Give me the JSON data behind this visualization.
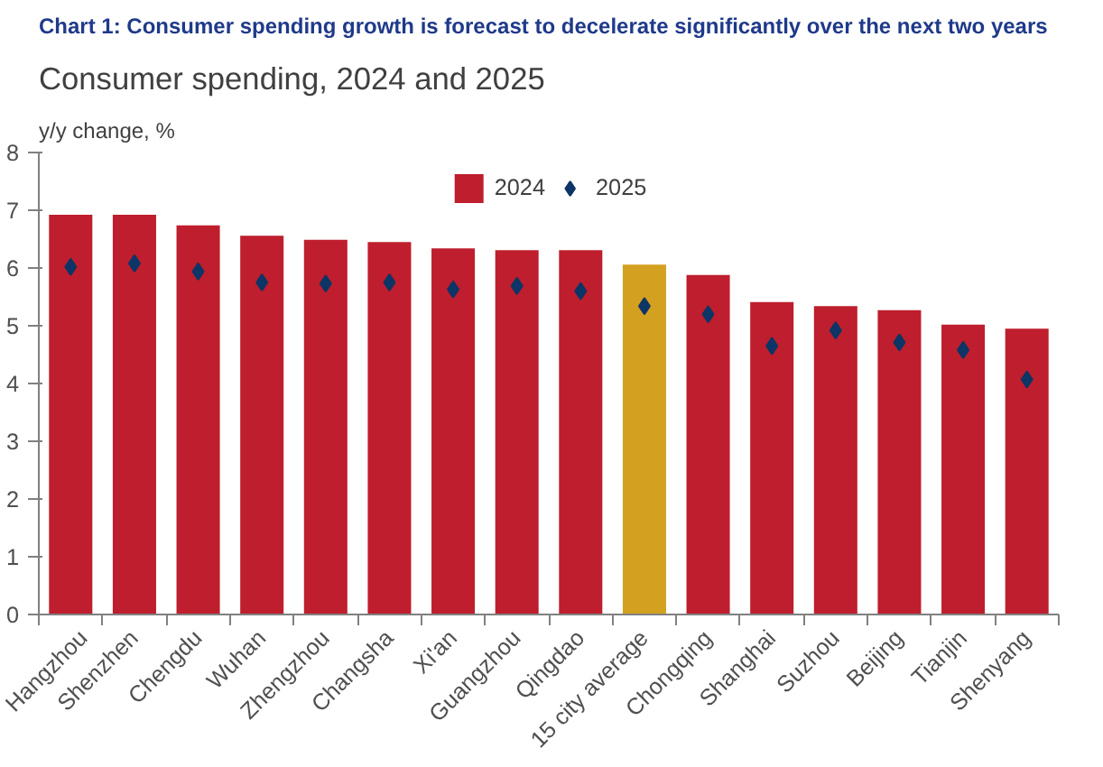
{
  "chart_data": {
    "type": "bar",
    "title": "Chart 1: Consumer spending growth is forecast to decelerate significantly over the next two years",
    "subtitle": "Consumer spending, 2024 and 2025",
    "ylabel": "y/y change, %",
    "categories": [
      "Hangzhou",
      "Shenzhen",
      "Chengdu",
      "Wuhan",
      "Zhengzhou",
      "Changsha",
      "Xi'an",
      "Guangzhou",
      "Qingdao",
      "15 city average",
      "Chongqing",
      "Shanghai",
      "Suzhou",
      "Beijing",
      "Tianjin",
      "Shenyang"
    ],
    "series": [
      {
        "name": "2024",
        "colors": [
          "#be1e2d",
          "#be1e2d",
          "#be1e2d",
          "#be1e2d",
          "#be1e2d",
          "#be1e2d",
          "#be1e2d",
          "#be1e2d",
          "#be1e2d",
          "#d4a020",
          "#be1e2d",
          "#be1e2d",
          "#be1e2d",
          "#be1e2d",
          "#be1e2d",
          "#be1e2d"
        ],
        "values": [
          6.92,
          6.92,
          6.74,
          6.56,
          6.49,
          6.45,
          6.34,
          6.31,
          6.31,
          6.06,
          5.88,
          5.41,
          5.34,
          5.27,
          5.02,
          4.95
        ]
      },
      {
        "name": "2025",
        "type": "scatter",
        "color": "#0d3566",
        "marker": "diamond",
        "values": [
          6.02,
          6.08,
          5.94,
          5.75,
          5.73,
          5.75,
          5.63,
          5.69,
          5.6,
          5.34,
          5.2,
          4.65,
          4.92,
          4.71,
          4.58,
          4.07
        ]
      }
    ],
    "ylim": [
      0,
      8
    ],
    "yticks": [
      0,
      1,
      2,
      3,
      4,
      5,
      6,
      7,
      8
    ],
    "grid": false,
    "legend": "top"
  }
}
